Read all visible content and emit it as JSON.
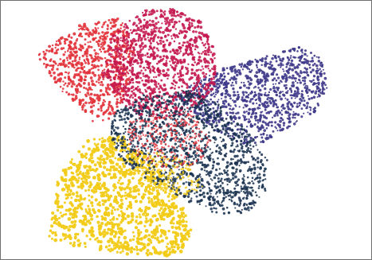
{
  "image": {
    "subject": "stippled-overlapping-petal-shapes",
    "colors": {
      "red": "#e2333b",
      "crimson": "#c4184f",
      "purple": "#3f3a8a",
      "navy": "#17304f",
      "yellow": "#f2cb18",
      "background": "#ffffff",
      "border": "#6f6f6f"
    }
  }
}
